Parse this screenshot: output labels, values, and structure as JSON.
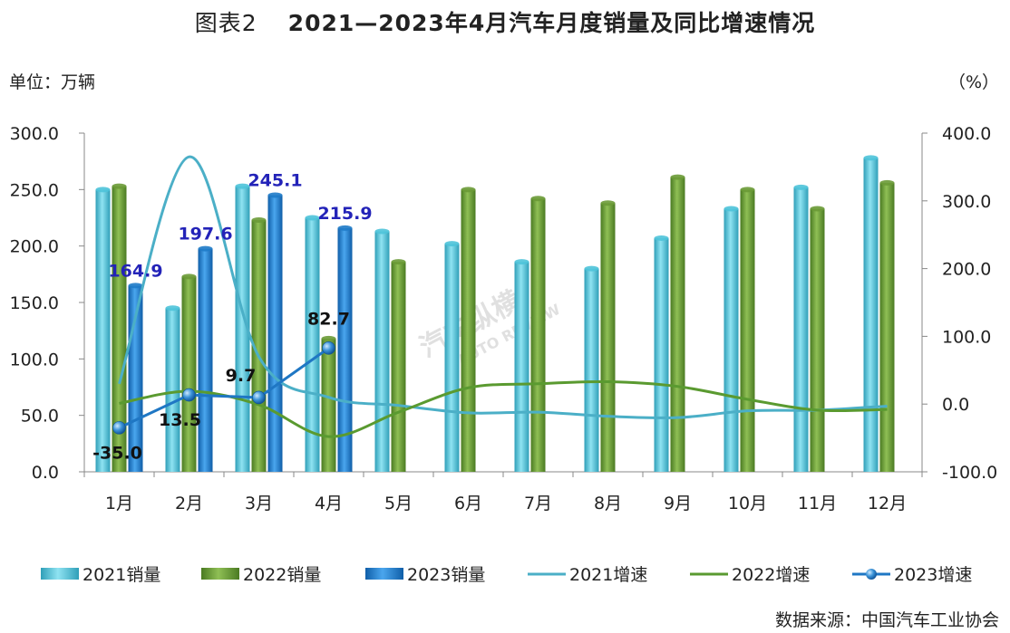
{
  "title": {
    "prefix": "图表2",
    "main": "2021—2023年4月汽车月度销量及同比增速情况"
  },
  "unit_left": "单位：万辆",
  "unit_right": "（%）",
  "source": "数据来源：中国汽车工业协会",
  "watermark": {
    "brand": "汽车纵横",
    "sub": "AUTO REVIEW"
  },
  "colors": {
    "bar2021": "#4ec3d9",
    "bar2022": "#6a9a36",
    "bar2023": "#1f7bc8",
    "line2021": "#4bafc7",
    "line2022": "#5a9a30",
    "line2023": "#1f77c4",
    "label_blue": "#2323b8"
  },
  "chart_data": {
    "type": "bar",
    "categories": [
      "1月",
      "2月",
      "3月",
      "4月",
      "5月",
      "6月",
      "7月",
      "8月",
      "9月",
      "10月",
      "11月",
      "12月"
    ],
    "y_left": {
      "ylim": [
        0,
        300
      ],
      "ticks": [
        "0.0",
        "50.0",
        "100.0",
        "150.0",
        "200.0",
        "250.0",
        "300.0"
      ]
    },
    "y_right": {
      "ylim": [
        -100,
        400
      ],
      "ticks": [
        "-100.0",
        "0.0",
        "100.0",
        "200.0",
        "300.0",
        "400.0"
      ]
    },
    "series": [
      {
        "name": "2021销量",
        "kind": "bar",
        "axis": "left",
        "values": [
          250,
          145,
          253,
          225,
          213,
          202,
          186,
          180,
          207,
          233,
          252,
          278
        ]
      },
      {
        "name": "2022销量",
        "kind": "bar",
        "axis": "left",
        "values": [
          253,
          173,
          223,
          118,
          186,
          250,
          242,
          238,
          261,
          250,
          233,
          256
        ]
      },
      {
        "name": "2023销量",
        "kind": "bar",
        "axis": "left",
        "values": [
          164.9,
          197.6,
          245.1,
          215.9,
          null,
          null,
          null,
          null,
          null,
          null,
          null,
          null
        ],
        "labels": [
          "164.9",
          "197.6",
          "245.1",
          "215.9"
        ]
      },
      {
        "name": "2021增速",
        "kind": "line",
        "axis": "right",
        "values": [
          30,
          365,
          70,
          10,
          -2,
          -13,
          -12,
          -18,
          -20,
          -10,
          -9,
          -3
        ]
      },
      {
        "name": "2022增速",
        "kind": "line",
        "axis": "right",
        "values": [
          1,
          19,
          -1,
          -48,
          -12,
          24,
          30,
          33,
          26,
          7,
          -9,
          -8
        ]
      },
      {
        "name": "2023增速",
        "kind": "line",
        "axis": "right",
        "values": [
          -35.0,
          13.5,
          9.7,
          82.7,
          null,
          null,
          null,
          null,
          null,
          null,
          null,
          null
        ],
        "labels": [
          "-35.0",
          "13.5",
          "9.7",
          "82.7"
        ]
      }
    ]
  }
}
